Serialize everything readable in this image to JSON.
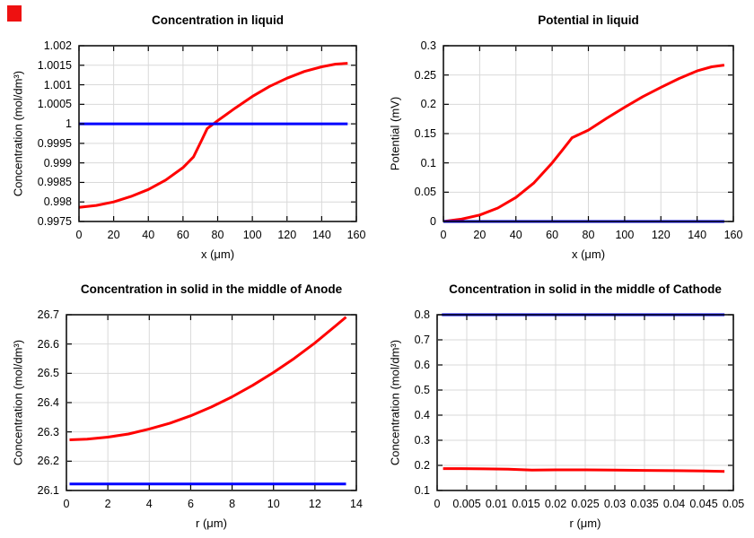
{
  "window": {
    "background": "#ffffff"
  },
  "corner_marker": {
    "color": "#ee1111"
  },
  "colors": {
    "series_red": "#ff0000",
    "series_blue": "#0000ff",
    "grid": "#d9d9d9",
    "frame": "#000000",
    "text": "#000000"
  },
  "chart_data": [
    {
      "type": "line",
      "title": "Concentration in liquid",
      "xlabel": "x (μm)",
      "ylabel": "Concentration (mol/dm³)",
      "xlim": [
        0,
        160
      ],
      "ylim": [
        0.9975,
        1.002
      ],
      "xticks": [
        "0",
        "20",
        "40",
        "60",
        "80",
        "100",
        "120",
        "140",
        "160"
      ],
      "yticks": [
        "0.9975",
        "0.998",
        "0.9985",
        "0.999",
        "0.9995",
        "1",
        "1.0005",
        "1.001",
        "1.0015",
        "1.002"
      ],
      "grid": true,
      "legend": "none",
      "series": [
        {
          "name": "liquid-concentration",
          "color": "#ff0000",
          "width": 3,
          "x": [
            0,
            10,
            20,
            30,
            40,
            50,
            60,
            66,
            71,
            74,
            80,
            90,
            100,
            110,
            120,
            130,
            140,
            148,
            155
          ],
          "y": [
            0.99786,
            0.99791,
            0.998,
            0.99814,
            0.99832,
            0.99856,
            0.99888,
            0.99915,
            0.9996,
            0.99988,
            1.00008,
            1.0004,
            1.0007,
            1.00096,
            1.00117,
            1.00134,
            1.00146,
            1.00153,
            1.00155
          ]
        },
        {
          "name": "initial-concentration",
          "color": "#0000ff",
          "width": 3,
          "x": [
            0,
            155
          ],
          "y": [
            1,
            1
          ]
        }
      ]
    },
    {
      "type": "line",
      "title": "Potential in liquid",
      "xlabel": "x (μm)",
      "ylabel": "Potential (mV)",
      "xlim": [
        0,
        160
      ],
      "ylim": [
        0,
        0.3
      ],
      "xticks": [
        "0",
        "20",
        "40",
        "60",
        "80",
        "100",
        "120",
        "140",
        "160"
      ],
      "yticks": [
        "0",
        "0.05",
        "0.1",
        "0.15",
        "0.2",
        "0.25",
        "0.3"
      ],
      "grid": true,
      "legend": "none",
      "series": [
        {
          "name": "liquid-potential",
          "color": "#ff0000",
          "width": 3,
          "x": [
            0,
            10,
            20,
            30,
            40,
            50,
            60,
            66,
            71,
            80,
            90,
            100,
            110,
            120,
            130,
            140,
            148,
            155
          ],
          "y": [
            0,
            0.004,
            0.011,
            0.023,
            0.041,
            0.066,
            0.1,
            0.123,
            0.143,
            0.156,
            0.176,
            0.195,
            0.213,
            0.229,
            0.244,
            0.257,
            0.264,
            0.267
          ]
        },
        {
          "name": "zero-reference",
          "color": "#0000ff",
          "width": 3,
          "x": [
            0,
            155
          ],
          "y": [
            0,
            0
          ]
        }
      ]
    },
    {
      "type": "line",
      "title": "Concentration in solid in the middle of Anode",
      "xlabel": "r (μm)",
      "ylabel": "Concentration (mol/dm³)",
      "xlim": [
        0,
        14
      ],
      "ylim": [
        26.1,
        26.7
      ],
      "xticks": [
        "0",
        "2",
        "4",
        "6",
        "8",
        "10",
        "12",
        "14"
      ],
      "yticks": [
        "26.1",
        "26.2",
        "26.3",
        "26.4",
        "26.5",
        "26.6",
        "26.7"
      ],
      "grid": true,
      "legend": "none",
      "series": [
        {
          "name": "anode-solid-concentration",
          "color": "#ff0000",
          "width": 3,
          "x": [
            0.15,
            1,
            2,
            3,
            4,
            5,
            6,
            7,
            8,
            9,
            10,
            11,
            12,
            13,
            13.5
          ],
          "y": [
            26.273,
            26.275,
            26.282,
            26.293,
            26.31,
            26.33,
            26.355,
            26.385,
            26.42,
            26.459,
            26.503,
            26.551,
            26.604,
            26.662,
            26.692
          ]
        },
        {
          "name": "anode-initial-concentration",
          "color": "#0000ff",
          "width": 3,
          "x": [
            0.15,
            13.5
          ],
          "y": [
            26.122,
            26.122
          ]
        }
      ]
    },
    {
      "type": "line",
      "title": "Concentration in solid in the middle of Cathode",
      "xlabel": "r (μm)",
      "ylabel": "Concentration (mol/dm³)",
      "xlim": [
        0,
        0.05
      ],
      "ylim": [
        0.1,
        0.8
      ],
      "xticks": [
        "0",
        "0.005",
        "0.01",
        "0.015",
        "0.02",
        "0.025",
        "0.03",
        "0.035",
        "0.04",
        "0.045",
        "0.05"
      ],
      "yticks": [
        "0.1",
        "0.2",
        "0.3",
        "0.4",
        "0.5",
        "0.6",
        "0.7",
        "0.8"
      ],
      "grid": true,
      "legend": "none",
      "series": [
        {
          "name": "cathode-solid-concentration",
          "color": "#ff0000",
          "width": 3,
          "x": [
            0.001,
            0.004,
            0.008,
            0.012,
            0.014,
            0.016,
            0.02,
            0.025,
            0.03,
            0.035,
            0.04,
            0.045,
            0.0485
          ],
          "y": [
            0.187,
            0.187,
            0.186,
            0.185,
            0.183,
            0.181,
            0.182,
            0.182,
            0.181,
            0.18,
            0.179,
            0.178,
            0.176
          ]
        },
        {
          "name": "cathode-initial-concentration",
          "color": "#0000ff",
          "width": 3,
          "x": [
            0.0008,
            0.0485
          ],
          "y": [
            0.8,
            0.8
          ]
        }
      ]
    }
  ]
}
